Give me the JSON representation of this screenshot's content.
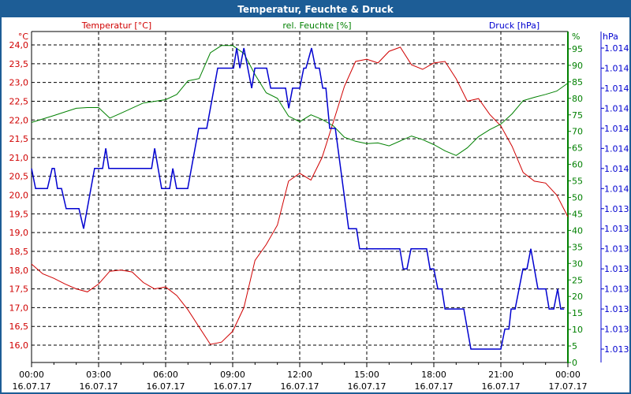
{
  "window": {
    "title": "Temperatur, Feuchte & Druck"
  },
  "colors": {
    "temperature": "#d00000",
    "humidity": "#008000",
    "pressure": "#0000d0",
    "titlebar": "#1d5d96"
  },
  "chart_data": {
    "type": "line",
    "title": "Temperatur, Feuchte & Druck",
    "grid": true,
    "x": {
      "unit": "hours since 16.07.17 00:00",
      "range": [
        0,
        24
      ],
      "tick_labels": [
        {
          "time": "00:00",
          "date": "16.07.17"
        },
        {
          "time": "03:00",
          "date": "16.07.17"
        },
        {
          "time": "06:00",
          "date": "16.07.17"
        },
        {
          "time": "09:00",
          "date": "16.07.17"
        },
        {
          "time": "12:00",
          "date": "16.07.17"
        },
        {
          "time": "15:00",
          "date": "16.07.17"
        },
        {
          "time": "18:00",
          "date": "16.07.17"
        },
        {
          "time": "21:00",
          "date": "16.07.17"
        },
        {
          "time": "00:00",
          "date": "17.07.17"
        }
      ]
    },
    "axes": {
      "temperature": {
        "label": "Temperatur [°C]",
        "unit": "°C",
        "range": [
          16.0,
          24.0
        ],
        "ticks": [
          "24,0",
          "23,5",
          "23,0",
          "22,5",
          "22,0",
          "21,5",
          "21,0",
          "20,5",
          "20,0",
          "19,5",
          "19,0",
          "18,5",
          "18,0",
          "17,5",
          "17,0",
          "16,5",
          "16,0"
        ]
      },
      "humidity": {
        "label": "rel. Feuchte [%]",
        "unit": "%",
        "range": [
          0,
          100
        ],
        "ticks": [
          "95",
          "90",
          "85",
          "80",
          "75",
          "70",
          "65",
          "60",
          "55",
          "50",
          "45",
          "40",
          "35",
          "30",
          "25",
          "20",
          "15",
          "10",
          "5",
          "0"
        ]
      },
      "pressure": {
        "label": "Druck [hPa]",
        "unit": "hPa",
        "range": [
          1012.7,
          1014.2
        ],
        "ticks": [
          "1.014",
          "1.014",
          "1.014",
          "1.014",
          "1.014",
          "1.014",
          "1.014",
          "1.014",
          "1.013",
          "1.013",
          "1.013",
          "1.013",
          "1.013",
          "1.013",
          "1.013",
          "1.013"
        ]
      }
    },
    "series": [
      {
        "name": "Temperatur [°C]",
        "axis": "temperature",
        "points": [
          [
            0,
            18.16
          ],
          [
            0.5,
            17.9
          ],
          [
            1,
            17.78
          ],
          [
            1.5,
            17.63
          ],
          [
            2,
            17.5
          ],
          [
            2.5,
            17.42
          ],
          [
            3,
            17.63
          ],
          [
            3.5,
            17.97
          ],
          [
            4,
            18.0
          ],
          [
            4.5,
            17.95
          ],
          [
            5,
            17.67
          ],
          [
            5.5,
            17.5
          ],
          [
            6,
            17.55
          ],
          [
            6.5,
            17.32
          ],
          [
            7,
            16.94
          ],
          [
            7.5,
            16.48
          ],
          [
            8,
            16.02
          ],
          [
            8.5,
            16.08
          ],
          [
            9,
            16.37
          ],
          [
            9.5,
            17.0
          ],
          [
            10,
            18.26
          ],
          [
            10.5,
            18.68
          ],
          [
            11,
            19.2
          ],
          [
            11.5,
            20.37
          ],
          [
            12,
            20.58
          ],
          [
            12.5,
            20.4
          ],
          [
            13,
            21.0
          ],
          [
            13.5,
            21.94
          ],
          [
            14,
            22.9
          ],
          [
            14.5,
            23.56
          ],
          [
            15,
            23.62
          ],
          [
            15.5,
            23.52
          ],
          [
            16,
            23.83
          ],
          [
            16.5,
            23.94
          ],
          [
            17,
            23.47
          ],
          [
            17.5,
            23.35
          ],
          [
            18,
            23.52
          ],
          [
            18.5,
            23.56
          ],
          [
            19,
            23.1
          ],
          [
            19.5,
            22.5
          ],
          [
            20,
            22.57
          ],
          [
            20.5,
            22.15
          ],
          [
            21,
            21.84
          ],
          [
            21.5,
            21.3
          ],
          [
            22,
            20.6
          ],
          [
            22.5,
            20.37
          ],
          [
            23,
            20.32
          ],
          [
            23.5,
            20.0
          ],
          [
            24,
            19.42
          ]
        ]
      },
      {
        "name": "rel. Feuchte [%]",
        "axis": "humidity",
        "points": [
          [
            0,
            72.7
          ],
          [
            1,
            74.8
          ],
          [
            2,
            77
          ],
          [
            2.5,
            77.2
          ],
          [
            3,
            77.2
          ],
          [
            3.5,
            74
          ],
          [
            4,
            75.5
          ],
          [
            5,
            78.6
          ],
          [
            6,
            79.6
          ],
          [
            6.5,
            81.2
          ],
          [
            7,
            85.3
          ],
          [
            7.5,
            86
          ],
          [
            8,
            93.8
          ],
          [
            8.5,
            96
          ],
          [
            9,
            96
          ],
          [
            9.5,
            93.6
          ],
          [
            10,
            87.2
          ],
          [
            10.5,
            81.7
          ],
          [
            11,
            80
          ],
          [
            11.5,
            74.6
          ],
          [
            12,
            72.9
          ],
          [
            12.5,
            75
          ],
          [
            13,
            73.6
          ],
          [
            13.5,
            71.7
          ],
          [
            14,
            68.2
          ],
          [
            14.5,
            67
          ],
          [
            15,
            66.3
          ],
          [
            15.5,
            66.5
          ],
          [
            16,
            65.6
          ],
          [
            17,
            68.6
          ],
          [
            17.5,
            67.5
          ],
          [
            18,
            66
          ],
          [
            18.5,
            64.1
          ],
          [
            19,
            62.7
          ],
          [
            19.5,
            65
          ],
          [
            20,
            68.4
          ],
          [
            20.5,
            70.5
          ],
          [
            21,
            72.2
          ],
          [
            21.5,
            75.3
          ],
          [
            22,
            79.3
          ],
          [
            22.5,
            80.3
          ],
          [
            23,
            81.2
          ],
          [
            23.5,
            82.2
          ],
          [
            24,
            84.6
          ]
        ]
      },
      {
        "name": "Druck [hPa]",
        "axis": "pressure",
        "points": [
          [
            0,
            1013.6
          ],
          [
            0.18,
            1013.5
          ],
          [
            0.71,
            1013.5
          ],
          [
            0.92,
            1013.6
          ],
          [
            1.02,
            1013.6
          ],
          [
            1.16,
            1013.5
          ],
          [
            1.34,
            1013.5
          ],
          [
            1.55,
            1013.4
          ],
          [
            2.12,
            1013.4
          ],
          [
            2.33,
            1013.3
          ],
          [
            2.82,
            1013.6
          ],
          [
            3.18,
            1013.6
          ],
          [
            3.32,
            1013.7
          ],
          [
            3.46,
            1013.6
          ],
          [
            5.37,
            1013.6
          ],
          [
            5.51,
            1013.7
          ],
          [
            5.82,
            1013.5
          ],
          [
            6.18,
            1013.5
          ],
          [
            6.32,
            1013.6
          ],
          [
            6.49,
            1013.5
          ],
          [
            6.99,
            1013.5
          ],
          [
            7.48,
            1013.8
          ],
          [
            7.84,
            1013.8
          ],
          [
            8.33,
            1014.1
          ],
          [
            9.04,
            1014.1
          ],
          [
            9.18,
            1014.2
          ],
          [
            9.32,
            1014.1
          ],
          [
            9.5,
            1014.2
          ],
          [
            9.85,
            1014.0
          ],
          [
            9.99,
            1014.1
          ],
          [
            10.52,
            1014.1
          ],
          [
            10.7,
            1014.0
          ],
          [
            11.37,
            1014.0
          ],
          [
            11.51,
            1013.9
          ],
          [
            11.68,
            1014.0
          ],
          [
            12.0,
            1014.0
          ],
          [
            12.18,
            1014.1
          ],
          [
            12.28,
            1014.1
          ],
          [
            12.53,
            1014.2
          ],
          [
            12.71,
            1014.1
          ],
          [
            12.88,
            1014.1
          ],
          [
            13.03,
            1014.0
          ],
          [
            13.17,
            1014.0
          ],
          [
            13.34,
            1013.8
          ],
          [
            13.59,
            1013.8
          ],
          [
            14.19,
            1013.3
          ],
          [
            14.54,
            1013.3
          ],
          [
            14.68,
            1013.2
          ],
          [
            16.48,
            1013.2
          ],
          [
            16.63,
            1013.1
          ],
          [
            16.8,
            1013.1
          ],
          [
            16.98,
            1013.2
          ],
          [
            17.68,
            1013.2
          ],
          [
            17.83,
            1013.1
          ],
          [
            18.0,
            1013.1
          ],
          [
            18.18,
            1013.0
          ],
          [
            18.36,
            1013.0
          ],
          [
            18.5,
            1012.9
          ],
          [
            19.34,
            1012.9
          ],
          [
            19.66,
            1012.7
          ],
          [
            21.0,
            1012.7
          ],
          [
            21.18,
            1012.8
          ],
          [
            21.36,
            1012.8
          ],
          [
            21.46,
            1012.9
          ],
          [
            21.64,
            1012.9
          ],
          [
            21.99,
            1013.1
          ],
          [
            22.17,
            1013.1
          ],
          [
            22.34,
            1013.2
          ],
          [
            22.66,
            1013.0
          ],
          [
            23.01,
            1013.0
          ],
          [
            23.16,
            1012.9
          ],
          [
            23.37,
            1012.9
          ],
          [
            23.54,
            1013.0
          ],
          [
            23.68,
            1012.9
          ],
          [
            23.83,
            1012.9
          ]
        ]
      }
    ]
  }
}
